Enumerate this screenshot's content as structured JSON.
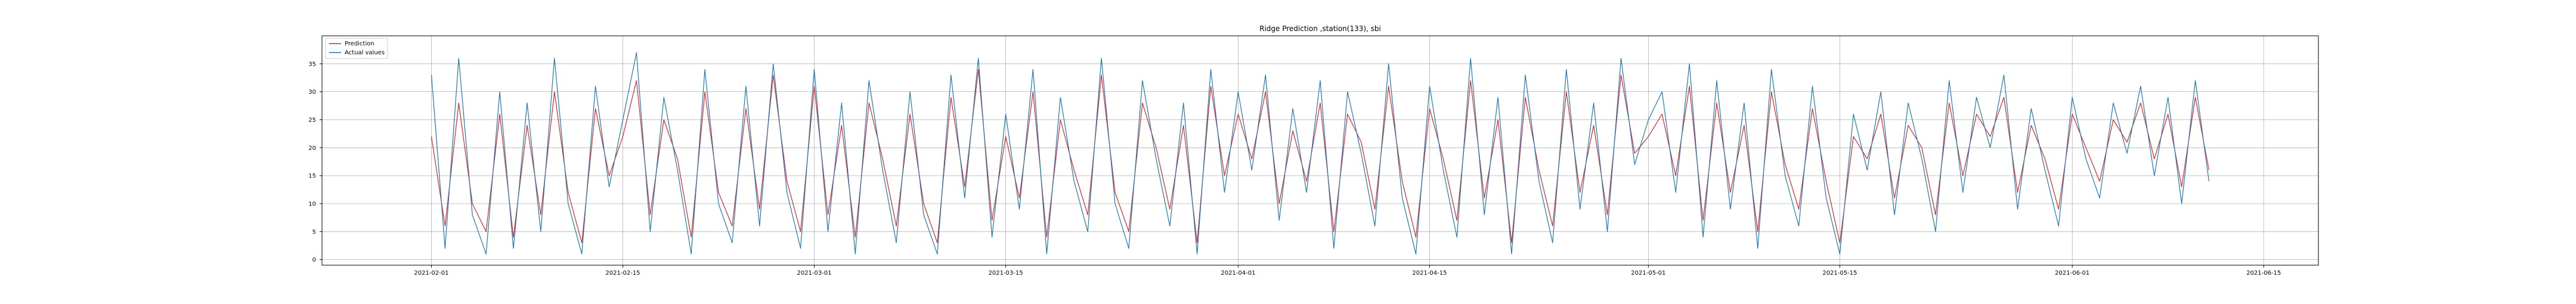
{
  "chart_data": {
    "type": "line",
    "title": "Ridge Prediction ,station(133), sbi",
    "xlabel": "",
    "ylabel": "",
    "x_range": [
      "2021-01-24",
      "2021-06-19"
    ],
    "ylim": [
      -1,
      40
    ],
    "x_ticks": [
      "2021-02-01",
      "2021-02-15",
      "2021-03-01",
      "2021-03-15",
      "2021-04-01",
      "2021-04-15",
      "2021-05-01",
      "2021-05-15",
      "2021-06-01",
      "2021-06-15"
    ],
    "y_ticks": [
      0,
      5,
      10,
      15,
      20,
      25,
      30,
      35
    ],
    "grid": true,
    "legend_position": "top-left",
    "series": [
      {
        "name": "Prediction",
        "color": "#d62728",
        "x": [
          "2021-02-01",
          "2021-02-02",
          "2021-02-03",
          "2021-02-04",
          "2021-02-05",
          "2021-02-06",
          "2021-02-07",
          "2021-02-08",
          "2021-02-09",
          "2021-02-10",
          "2021-02-11",
          "2021-02-12",
          "2021-02-13",
          "2021-02-14",
          "2021-02-15",
          "2021-02-16",
          "2021-02-17",
          "2021-02-18",
          "2021-02-19",
          "2021-02-20",
          "2021-02-21",
          "2021-02-22",
          "2021-02-23",
          "2021-02-24",
          "2021-02-25",
          "2021-02-26",
          "2021-02-27",
          "2021-02-28",
          "2021-03-01",
          "2021-03-02",
          "2021-03-03",
          "2021-03-04",
          "2021-03-05",
          "2021-03-06",
          "2021-03-07",
          "2021-03-08",
          "2021-03-09",
          "2021-03-10",
          "2021-03-11",
          "2021-03-12",
          "2021-03-13",
          "2021-03-14",
          "2021-03-15",
          "2021-03-16",
          "2021-03-17",
          "2021-03-18",
          "2021-03-19",
          "2021-03-20",
          "2021-03-21",
          "2021-03-22",
          "2021-03-23",
          "2021-03-24",
          "2021-03-25",
          "2021-03-26",
          "2021-03-27",
          "2021-03-28",
          "2021-03-29",
          "2021-03-30",
          "2021-03-31",
          "2021-04-01",
          "2021-04-02",
          "2021-04-03",
          "2021-04-04",
          "2021-04-05",
          "2021-04-06",
          "2021-04-07",
          "2021-04-08",
          "2021-04-09",
          "2021-04-10",
          "2021-04-11",
          "2021-04-12",
          "2021-04-13",
          "2021-04-14",
          "2021-04-15",
          "2021-04-16",
          "2021-04-17",
          "2021-04-18",
          "2021-04-19",
          "2021-04-20",
          "2021-04-21",
          "2021-04-22",
          "2021-04-23",
          "2021-04-24",
          "2021-04-25",
          "2021-04-26",
          "2021-04-27",
          "2021-04-28",
          "2021-04-29",
          "2021-04-30",
          "2021-05-01",
          "2021-05-02",
          "2021-05-03",
          "2021-05-04",
          "2021-05-05",
          "2021-05-06",
          "2021-05-07",
          "2021-05-08",
          "2021-05-09",
          "2021-05-10",
          "2021-05-11",
          "2021-05-12",
          "2021-05-13",
          "2021-05-14",
          "2021-05-15",
          "2021-05-16",
          "2021-05-17",
          "2021-05-18",
          "2021-05-19",
          "2021-05-20",
          "2021-05-21",
          "2021-05-22",
          "2021-05-23",
          "2021-05-24",
          "2021-05-25",
          "2021-05-26",
          "2021-05-27",
          "2021-05-28",
          "2021-05-29",
          "2021-05-30",
          "2021-05-31",
          "2021-06-01",
          "2021-06-02",
          "2021-06-03",
          "2021-06-04",
          "2021-06-05",
          "2021-06-06",
          "2021-06-07",
          "2021-06-08",
          "2021-06-09",
          "2021-06-10",
          "2021-06-11"
        ],
        "values": [
          22,
          6,
          28,
          10,
          5,
          26,
          4,
          24,
          8,
          30,
          12,
          3,
          27,
          15,
          22,
          32,
          8,
          25,
          18,
          4,
          30,
          12,
          6,
          27,
          9,
          33,
          14,
          5,
          31,
          8,
          24,
          4,
          28,
          18,
          6,
          26,
          10,
          3,
          29,
          13,
          34,
          7,
          22,
          11,
          30,
          4,
          25,
          16,
          8,
          33,
          12,
          5,
          28,
          20,
          9,
          24,
          3,
          31,
          15,
          26,
          18,
          30,
          10,
          23,
          14,
          28,
          5,
          26,
          21,
          9,
          31,
          14,
          4,
          27,
          18,
          7,
          32,
          11,
          25,
          3,
          29,
          16,
          6,
          30,
          12,
          24,
          8,
          33,
          19,
          22,
          26,
          15,
          31,
          7,
          28,
          12,
          24,
          5,
          30,
          17,
          9,
          27,
          14,
          3,
          22,
          18,
          26,
          11,
          24,
          20,
          8,
          28,
          15,
          26,
          22,
          29,
          12,
          24,
          18,
          9,
          26,
          20,
          14,
          25,
          21,
          28,
          18,
          26,
          13,
          29,
          16
        ]
      },
      {
        "name": "Actual values",
        "color": "#1f77b4",
        "x": [
          "2021-02-01",
          "2021-02-02",
          "2021-02-03",
          "2021-02-04",
          "2021-02-05",
          "2021-02-06",
          "2021-02-07",
          "2021-02-08",
          "2021-02-09",
          "2021-02-10",
          "2021-02-11",
          "2021-02-12",
          "2021-02-13",
          "2021-02-14",
          "2021-02-15",
          "2021-02-16",
          "2021-02-17",
          "2021-02-18",
          "2021-02-19",
          "2021-02-20",
          "2021-02-21",
          "2021-02-22",
          "2021-02-23",
          "2021-02-24",
          "2021-02-25",
          "2021-02-26",
          "2021-02-27",
          "2021-02-28",
          "2021-03-01",
          "2021-03-02",
          "2021-03-03",
          "2021-03-04",
          "2021-03-05",
          "2021-03-06",
          "2021-03-07",
          "2021-03-08",
          "2021-03-09",
          "2021-03-10",
          "2021-03-11",
          "2021-03-12",
          "2021-03-13",
          "2021-03-14",
          "2021-03-15",
          "2021-03-16",
          "2021-03-17",
          "2021-03-18",
          "2021-03-19",
          "2021-03-20",
          "2021-03-21",
          "2021-03-22",
          "2021-03-23",
          "2021-03-24",
          "2021-03-25",
          "2021-03-26",
          "2021-03-27",
          "2021-03-28",
          "2021-03-29",
          "2021-03-30",
          "2021-03-31",
          "2021-04-01",
          "2021-04-02",
          "2021-04-03",
          "2021-04-04",
          "2021-04-05",
          "2021-04-06",
          "2021-04-07",
          "2021-04-08",
          "2021-04-09",
          "2021-04-10",
          "2021-04-11",
          "2021-04-12",
          "2021-04-13",
          "2021-04-14",
          "2021-04-15",
          "2021-04-16",
          "2021-04-17",
          "2021-04-18",
          "2021-04-19",
          "2021-04-20",
          "2021-04-21",
          "2021-04-22",
          "2021-04-23",
          "2021-04-24",
          "2021-04-25",
          "2021-04-26",
          "2021-04-27",
          "2021-04-28",
          "2021-04-29",
          "2021-04-30",
          "2021-05-01",
          "2021-05-02",
          "2021-05-03",
          "2021-05-04",
          "2021-05-05",
          "2021-05-06",
          "2021-05-07",
          "2021-05-08",
          "2021-05-09",
          "2021-05-10",
          "2021-05-11",
          "2021-05-12",
          "2021-05-13",
          "2021-05-14",
          "2021-05-15",
          "2021-05-16",
          "2021-05-17",
          "2021-05-18",
          "2021-05-19",
          "2021-05-20",
          "2021-05-21",
          "2021-05-22",
          "2021-05-23",
          "2021-05-24",
          "2021-05-25",
          "2021-05-26",
          "2021-05-27",
          "2021-05-28",
          "2021-05-29",
          "2021-05-30",
          "2021-05-31",
          "2021-06-01",
          "2021-06-02",
          "2021-06-03",
          "2021-06-04",
          "2021-06-05",
          "2021-06-06",
          "2021-06-07",
          "2021-06-08",
          "2021-06-09",
          "2021-06-10",
          "2021-06-11"
        ],
        "values": [
          33,
          2,
          36,
          8,
          1,
          30,
          2,
          28,
          5,
          36,
          10,
          1,
          31,
          13,
          25,
          37,
          5,
          29,
          16,
          1,
          34,
          10,
          3,
          31,
          6,
          35,
          12,
          2,
          34,
          5,
          28,
          1,
          32,
          16,
          3,
          30,
          8,
          1,
          33,
          11,
          36,
          4,
          26,
          9,
          34,
          1,
          29,
          14,
          5,
          36,
          10,
          2,
          32,
          18,
          6,
          28,
          1,
          34,
          12,
          30,
          16,
          33,
          7,
          27,
          12,
          32,
          2,
          30,
          19,
          6,
          35,
          11,
          1,
          31,
          16,
          4,
          36,
          8,
          29,
          1,
          33,
          14,
          3,
          34,
          9,
          28,
          5,
          36,
          17,
          25,
          30,
          12,
          35,
          4,
          32,
          9,
          28,
          2,
          34,
          15,
          6,
          31,
          11,
          1,
          26,
          16,
          30,
          8,
          28,
          18,
          5,
          32,
          12,
          29,
          20,
          33,
          9,
          27,
          16,
          6,
          29,
          18,
          11,
          28,
          19,
          31,
          15,
          29,
          10,
          32,
          14
        ]
      }
    ]
  }
}
